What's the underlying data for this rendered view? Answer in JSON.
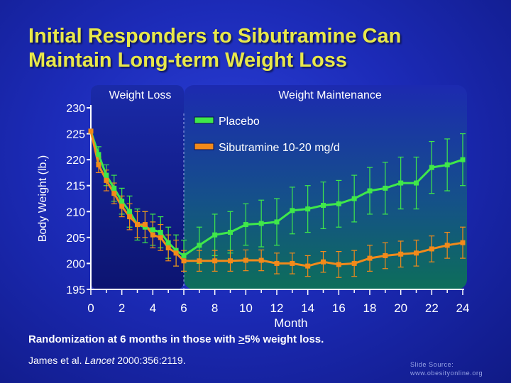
{
  "title_line1": "Initial Responders to Sibutramine Can",
  "title_line2": "Maintain Long-term Weight Loss",
  "chart_data": {
    "type": "line",
    "ylabel": "Body Weight (lb.)",
    "xlabel": "Month",
    "ylim": [
      195,
      230
    ],
    "yticks": [
      195,
      200,
      205,
      210,
      215,
      220,
      225,
      230
    ],
    "xlim": [
      0,
      24
    ],
    "xticks": [
      0,
      2,
      4,
      6,
      8,
      10,
      12,
      14,
      16,
      18,
      20,
      22,
      24
    ],
    "regions": [
      {
        "label": "Weight Loss",
        "x_start": 0,
        "x_end": 6
      },
      {
        "label": "Weight Maintenance",
        "x_start": 6,
        "x_end": 24
      }
    ],
    "series": [
      {
        "name": "Placebo",
        "color": "#3fe84a",
        "points": [
          {
            "x": 0,
            "y": 225.5,
            "err": 0
          },
          {
            "x": 0.5,
            "y": 221,
            "err": 1.5
          },
          {
            "x": 1,
            "y": 217,
            "err": 2
          },
          {
            "x": 1.5,
            "y": 214.5,
            "err": 2.5
          },
          {
            "x": 2,
            "y": 212,
            "err": 2.5
          },
          {
            "x": 2.5,
            "y": 210,
            "err": 3
          },
          {
            "x": 3,
            "y": 207.5,
            "err": 3
          },
          {
            "x": 3.5,
            "y": 207,
            "err": 3
          },
          {
            "x": 4,
            "y": 206.5,
            "err": 3
          },
          {
            "x": 4.5,
            "y": 206,
            "err": 3
          },
          {
            "x": 5,
            "y": 204,
            "err": 3
          },
          {
            "x": 5.5,
            "y": 202.5,
            "err": 3
          },
          {
            "x": 6,
            "y": 201.5,
            "err": 3
          },
          {
            "x": 7,
            "y": 203.5,
            "err": 3.5
          },
          {
            "x": 8,
            "y": 205.5,
            "err": 4
          },
          {
            "x": 9,
            "y": 206,
            "err": 4
          },
          {
            "x": 10,
            "y": 207.5,
            "err": 4
          },
          {
            "x": 11,
            "y": 207.7,
            "err": 4.5
          },
          {
            "x": 12,
            "y": 208,
            "err": 4.5
          },
          {
            "x": 13,
            "y": 210.2,
            "err": 4.5
          },
          {
            "x": 14,
            "y": 210.5,
            "err": 4.5
          },
          {
            "x": 15,
            "y": 211.2,
            "err": 4.5
          },
          {
            "x": 16,
            "y": 211.5,
            "err": 4.5
          },
          {
            "x": 17,
            "y": 212.5,
            "err": 4.5
          },
          {
            "x": 18,
            "y": 214,
            "err": 4.5
          },
          {
            "x": 19,
            "y": 214.5,
            "err": 5
          },
          {
            "x": 20,
            "y": 215.5,
            "err": 5
          },
          {
            "x": 21,
            "y": 215.5,
            "err": 5
          },
          {
            "x": 22,
            "y": 218.5,
            "err": 5
          },
          {
            "x": 23,
            "y": 219,
            "err": 5
          },
          {
            "x": 24,
            "y": 220,
            "err": 5
          }
        ]
      },
      {
        "name": "Sibutramine 10-20 mg/d",
        "color": "#f28a1a",
        "points": [
          {
            "x": 0,
            "y": 225.5,
            "err": 0
          },
          {
            "x": 0.5,
            "y": 219,
            "err": 1.5
          },
          {
            "x": 1,
            "y": 216,
            "err": 2
          },
          {
            "x": 1.5,
            "y": 213.5,
            "err": 2
          },
          {
            "x": 2,
            "y": 211,
            "err": 2
          },
          {
            "x": 2.5,
            "y": 209,
            "err": 2.5
          },
          {
            "x": 3,
            "y": 207.5,
            "err": 2.5
          },
          {
            "x": 3.5,
            "y": 207.5,
            "err": 2.5
          },
          {
            "x": 4,
            "y": 205.5,
            "err": 2.5
          },
          {
            "x": 4.5,
            "y": 205,
            "err": 2.5
          },
          {
            "x": 5,
            "y": 203,
            "err": 2.5
          },
          {
            "x": 5.5,
            "y": 202,
            "err": 2.5
          },
          {
            "x": 6,
            "y": 200.5,
            "err": 2
          },
          {
            "x": 7,
            "y": 200.5,
            "err": 2
          },
          {
            "x": 8,
            "y": 200.5,
            "err": 2
          },
          {
            "x": 9,
            "y": 200.5,
            "err": 2
          },
          {
            "x": 10,
            "y": 200.6,
            "err": 2
          },
          {
            "x": 11,
            "y": 200.6,
            "err": 2
          },
          {
            "x": 12,
            "y": 200,
            "err": 2
          },
          {
            "x": 13,
            "y": 200,
            "err": 2
          },
          {
            "x": 14,
            "y": 199.5,
            "err": 2
          },
          {
            "x": 15,
            "y": 200.3,
            "err": 2
          },
          {
            "x": 16,
            "y": 199.8,
            "err": 2.5
          },
          {
            "x": 17,
            "y": 200,
            "err": 2.5
          },
          {
            "x": 18,
            "y": 201,
            "err": 2.5
          },
          {
            "x": 19,
            "y": 201.5,
            "err": 2.5
          },
          {
            "x": 20,
            "y": 201.8,
            "err": 2.5
          },
          {
            "x": 21,
            "y": 202,
            "err": 2.5
          },
          {
            "x": 22,
            "y": 202.8,
            "err": 2.5
          },
          {
            "x": 23,
            "y": 203.5,
            "err": 2.5
          },
          {
            "x": 24,
            "y": 204,
            "err": 3
          }
        ]
      }
    ]
  },
  "footnote": {
    "before": "Randomization at 6 months in those with ",
    "underlined": ">",
    "after": "5% weight loss."
  },
  "citation": {
    "authors": "James et al. ",
    "journal": "Lancet",
    "rest": " 2000:356:2119."
  },
  "source": {
    "line1": "Slide Source:",
    "line2": "www.obesityonline.org"
  }
}
